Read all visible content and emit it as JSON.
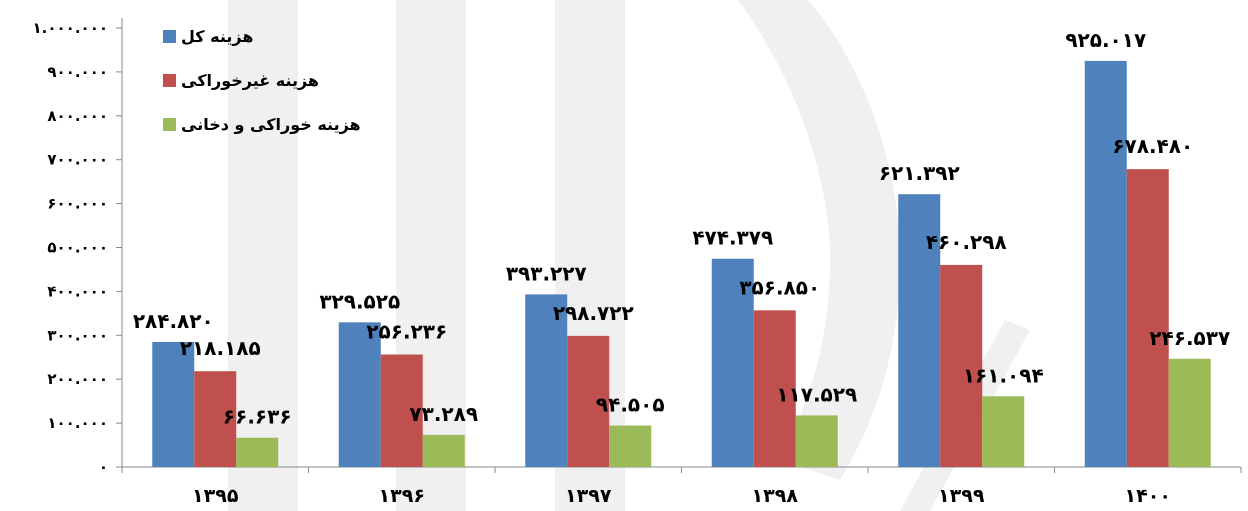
{
  "chart_data": {
    "type": "bar",
    "categories": [
      "۱۳۹۵",
      "۱۳۹۶",
      "۱۳۹۷",
      "۱۳۹۸",
      "۱۳۹۹",
      "۱۴۰۰"
    ],
    "series": [
      {
        "name": "هزینه کل",
        "color": "#4f81bd",
        "values": [
          284820,
          329525,
          393227,
          474379,
          621392,
          925017
        ],
        "labels": [
          "۲۸۴.۸۲۰",
          "۳۲۹.۵۲۵",
          "۳۹۳.۲۲۷",
          "۴۷۴.۳۷۹",
          "۶۲۱.۳۹۲",
          "۹۲۵.۰۱۷"
        ]
      },
      {
        "name": "هزینه غیرخوراکی",
        "color": "#c0504d",
        "values": [
          218185,
          256236,
          298722,
          356850,
          460298,
          678480
        ],
        "labels": [
          "۲۱۸.۱۸۵",
          "۲۵۶.۲۳۶",
          "۲۹۸.۷۲۲",
          "۳۵۶.۸۵۰",
          "۴۶۰.۲۹۸",
          "۶۷۸.۴۸۰"
        ]
      },
      {
        "name": "هزینه خوراکی و دخانی",
        "color": "#9bbb59",
        "values": [
          66636,
          73289,
          94505,
          117529,
          161094,
          246537
        ],
        "labels": [
          "۶۶.۶۳۶",
          "۷۳.۲۸۹",
          "۹۴.۵۰۵",
          "۱۱۷.۵۲۹",
          "۱۶۱.۰۹۴",
          "۲۴۶.۵۳۷"
        ]
      }
    ],
    "ylim": [
      0,
      1000000
    ],
    "yticks": [
      0,
      100000,
      200000,
      300000,
      400000,
      500000,
      600000,
      700000,
      800000,
      900000,
      1000000
    ],
    "ytick_labels": [
      "۰",
      "۱۰۰.۰۰۰",
      "۲۰۰.۰۰۰",
      "۳۰۰.۰۰۰",
      "۴۰۰.۰۰۰",
      "۵۰۰.۰۰۰",
      "۶۰۰.۰۰۰",
      "۷۰۰.۰۰۰",
      "۸۰۰.۰۰۰",
      "۹۰۰.۰۰۰",
      "۱.۰۰۰.۰۰۰"
    ],
    "grid": false,
    "legend_position": "top-left"
  }
}
